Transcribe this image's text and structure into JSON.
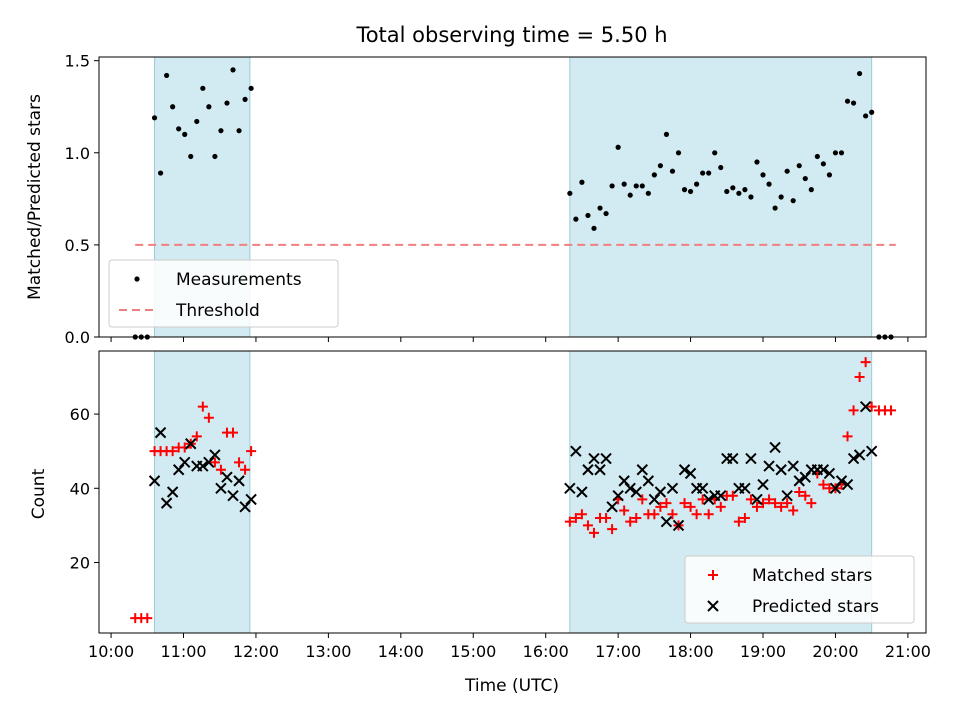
{
  "chart_data": [
    {
      "type": "scatter",
      "title": "Total observing time = 5.50 h",
      "xlabel": "",
      "ylabel": "Matched/Predicted stars",
      "ylim": [
        0,
        1.52
      ],
      "yticks": [
        "0.0",
        "0.5",
        "1.0",
        "1.5"
      ],
      "yticks_values": [
        0,
        0.5,
        1.0,
        1.5
      ],
      "shaded_intervals": [
        [
          "10:36",
          "11:55"
        ],
        [
          "16:20",
          "20:30"
        ]
      ],
      "shade_color": "#add8e6",
      "legend_position": "lower-left",
      "series": [
        {
          "name": "Measurements",
          "marker": "dot",
          "color": "#000000",
          "points": [
            [
              "10:20",
              0.0
            ],
            [
              "10:25",
              0.0
            ],
            [
              "10:30",
              0.0
            ],
            [
              "10:36",
              1.19
            ],
            [
              "10:41",
              0.89
            ],
            [
              "10:46",
              1.42
            ],
            [
              "10:51",
              1.25
            ],
            [
              "10:56",
              1.13
            ],
            [
              "11:01",
              1.1
            ],
            [
              "11:06",
              0.98
            ],
            [
              "11:11",
              1.17
            ],
            [
              "11:16",
              1.35
            ],
            [
              "11:21",
              1.25
            ],
            [
              "11:26",
              0.98
            ],
            [
              "11:31",
              1.12
            ],
            [
              "11:36",
              1.27
            ],
            [
              "11:41",
              1.45
            ],
            [
              "11:46",
              1.12
            ],
            [
              "11:51",
              1.29
            ],
            [
              "11:56",
              1.35
            ],
            [
              "16:20",
              0.78
            ],
            [
              "16:25",
              0.64
            ],
            [
              "16:30",
              0.84
            ],
            [
              "16:35",
              0.66
            ],
            [
              "16:40",
              0.59
            ],
            [
              "16:45",
              0.7
            ],
            [
              "16:50",
              0.67
            ],
            [
              "16:55",
              0.82
            ],
            [
              "17:00",
              1.03
            ],
            [
              "17:05",
              0.83
            ],
            [
              "17:10",
              0.77
            ],
            [
              "17:15",
              0.82
            ],
            [
              "17:20",
              0.82
            ],
            [
              "17:25",
              0.78
            ],
            [
              "17:30",
              0.88
            ],
            [
              "17:35",
              0.93
            ],
            [
              "17:40",
              1.1
            ],
            [
              "17:45",
              0.9
            ],
            [
              "17:50",
              1.0
            ],
            [
              "17:55",
              0.8
            ],
            [
              "18:00",
              0.79
            ],
            [
              "18:05",
              0.83
            ],
            [
              "18:10",
              0.89
            ],
            [
              "18:15",
              0.89
            ],
            [
              "18:20",
              1.0
            ],
            [
              "18:25",
              0.92
            ],
            [
              "18:30",
              0.79
            ],
            [
              "18:35",
              0.81
            ],
            [
              "18:40",
              0.78
            ],
            [
              "18:45",
              0.8
            ],
            [
              "18:50",
              0.76
            ],
            [
              "18:55",
              0.95
            ],
            [
              "19:00",
              0.88
            ],
            [
              "19:05",
              0.83
            ],
            [
              "19:10",
              0.7
            ],
            [
              "19:15",
              0.76
            ],
            [
              "19:20",
              0.9
            ],
            [
              "19:25",
              0.74
            ],
            [
              "19:30",
              0.93
            ],
            [
              "19:35",
              0.86
            ],
            [
              "19:40",
              0.8
            ],
            [
              "19:45",
              0.98
            ],
            [
              "19:50",
              0.94
            ],
            [
              "19:55",
              0.88
            ],
            [
              "20:00",
              1.0
            ],
            [
              "20:05",
              1.0
            ],
            [
              "20:10",
              1.28
            ],
            [
              "20:15",
              1.27
            ],
            [
              "20:20",
              1.43
            ],
            [
              "20:25",
              1.2
            ],
            [
              "20:30",
              1.22
            ],
            [
              "20:36",
              0.0
            ],
            [
              "20:41",
              0.0
            ],
            [
              "20:46",
              0.0
            ]
          ]
        },
        {
          "name": "Threshold",
          "marker": "dashed-line",
          "color": "#f08080",
          "points": [
            [
              "10:20",
              0.5
            ],
            [
              "20:50",
              0.5
            ]
          ]
        }
      ]
    },
    {
      "type": "scatter",
      "title": "",
      "xlabel": "Time (UTC)",
      "ylabel": "Count",
      "ylim": [
        1,
        77
      ],
      "yticks": [
        "20",
        "40",
        "60"
      ],
      "yticks_values": [
        20,
        40,
        60
      ],
      "xlim": [
        "09:50",
        "21:15"
      ],
      "xticks": [
        "10:00",
        "11:00",
        "12:00",
        "13:00",
        "14:00",
        "15:00",
        "16:00",
        "17:00",
        "18:00",
        "19:00",
        "20:00",
        "21:00"
      ],
      "shaded_intervals": [
        [
          "10:36",
          "11:55"
        ],
        [
          "16:20",
          "20:30"
        ]
      ],
      "shade_color": "#add8e6",
      "legend_position": "lower-right",
      "series": [
        {
          "name": "Matched stars",
          "marker": "plus",
          "color": "#ff0000",
          "points": [
            [
              "10:20",
              5
            ],
            [
              "10:25",
              5
            ],
            [
              "10:30",
              5
            ],
            [
              "10:36",
              50
            ],
            [
              "10:41",
              50
            ],
            [
              "10:46",
              50
            ],
            [
              "10:51",
              50
            ],
            [
              "10:56",
              51
            ],
            [
              "11:01",
              51
            ],
            [
              "11:06",
              52
            ],
            [
              "11:11",
              54
            ],
            [
              "11:16",
              62
            ],
            [
              "11:21",
              59
            ],
            [
              "11:26",
              47
            ],
            [
              "11:31",
              45
            ],
            [
              "11:36",
              55
            ],
            [
              "11:41",
              55
            ],
            [
              "11:46",
              47
            ],
            [
              "11:51",
              45
            ],
            [
              "11:56",
              50
            ],
            [
              "16:20",
              31
            ],
            [
              "16:25",
              32
            ],
            [
              "16:30",
              33
            ],
            [
              "16:35",
              30
            ],
            [
              "16:40",
              28
            ],
            [
              "16:45",
              32
            ],
            [
              "16:50",
              32
            ],
            [
              "16:55",
              29
            ],
            [
              "17:00",
              37
            ],
            [
              "17:05",
              34
            ],
            [
              "17:10",
              31
            ],
            [
              "17:15",
              32
            ],
            [
              "17:20",
              37
            ],
            [
              "17:25",
              33
            ],
            [
              "17:30",
              33
            ],
            [
              "17:35",
              35
            ],
            [
              "17:40",
              36
            ],
            [
              "17:45",
              33
            ],
            [
              "17:50",
              30
            ],
            [
              "17:55",
              36
            ],
            [
              "18:00",
              35
            ],
            [
              "18:05",
              33
            ],
            [
              "18:10",
              37
            ],
            [
              "18:15",
              33
            ],
            [
              "18:20",
              37
            ],
            [
              "18:25",
              35
            ],
            [
              "18:30",
              38
            ],
            [
              "18:35",
              38
            ],
            [
              "18:40",
              31
            ],
            [
              "18:45",
              32
            ],
            [
              "18:50",
              37
            ],
            [
              "18:55",
              35
            ],
            [
              "19:00",
              36
            ],
            [
              "19:05",
              37
            ],
            [
              "19:10",
              36
            ],
            [
              "19:15",
              35
            ],
            [
              "19:20",
              36
            ],
            [
              "19:25",
              34
            ],
            [
              "19:30",
              39
            ],
            [
              "19:35",
              38
            ],
            [
              "19:40",
              36
            ],
            [
              "19:45",
              44
            ],
            [
              "19:50",
              41
            ],
            [
              "19:55",
              40
            ],
            [
              "20:00",
              40
            ],
            [
              "20:05",
              41
            ],
            [
              "20:10",
              54
            ],
            [
              "20:15",
              61
            ],
            [
              "20:20",
              70
            ],
            [
              "20:25",
              74
            ],
            [
              "20:30",
              62
            ],
            [
              "20:36",
              61
            ],
            [
              "20:41",
              61
            ],
            [
              "20:46",
              61
            ]
          ]
        },
        {
          "name": "Predicted stars",
          "marker": "x",
          "color": "#000000",
          "points": [
            [
              "10:36",
              42
            ],
            [
              "10:41",
              55
            ],
            [
              "10:46",
              36
            ],
            [
              "10:51",
              39
            ],
            [
              "10:56",
              45
            ],
            [
              "11:01",
              47
            ],
            [
              "11:06",
              52
            ],
            [
              "11:11",
              46
            ],
            [
              "11:16",
              46
            ],
            [
              "11:21",
              47
            ],
            [
              "11:26",
              49
            ],
            [
              "11:31",
              40
            ],
            [
              "11:36",
              43
            ],
            [
              "11:41",
              38
            ],
            [
              "11:46",
              42
            ],
            [
              "11:51",
              35
            ],
            [
              "11:56",
              37
            ],
            [
              "16:20",
              40
            ],
            [
              "16:25",
              50
            ],
            [
              "16:30",
              39
            ],
            [
              "16:35",
              45
            ],
            [
              "16:40",
              48
            ],
            [
              "16:45",
              45
            ],
            [
              "16:50",
              48
            ],
            [
              "16:55",
              35
            ],
            [
              "17:00",
              38
            ],
            [
              "17:05",
              42
            ],
            [
              "17:10",
              40
            ],
            [
              "17:15",
              39
            ],
            [
              "17:20",
              45
            ],
            [
              "17:25",
              42
            ],
            [
              "17:30",
              37
            ],
            [
              "17:35",
              39
            ],
            [
              "17:40",
              31
            ],
            [
              "17:45",
              40
            ],
            [
              "17:50",
              30
            ],
            [
              "17:55",
              45
            ],
            [
              "18:00",
              44
            ],
            [
              "18:05",
              40
            ],
            [
              "18:10",
              40
            ],
            [
              "18:15",
              37
            ],
            [
              "18:20",
              38
            ],
            [
              "18:25",
              38
            ],
            [
              "18:30",
              48
            ],
            [
              "18:35",
              48
            ],
            [
              "18:40",
              40
            ],
            [
              "18:45",
              40
            ],
            [
              "18:50",
              48
            ],
            [
              "18:55",
              37
            ],
            [
              "19:00",
              41
            ],
            [
              "19:05",
              46
            ],
            [
              "19:10",
              51
            ],
            [
              "19:15",
              45
            ],
            [
              "19:20",
              38
            ],
            [
              "19:25",
              46
            ],
            [
              "19:30",
              42
            ],
            [
              "19:35",
              43
            ],
            [
              "19:40",
              45
            ],
            [
              "19:45",
              45
            ],
            [
              "19:50",
              45
            ],
            [
              "19:55",
              44
            ],
            [
              "20:00",
              40
            ],
            [
              "20:05",
              42
            ],
            [
              "20:10",
              41
            ],
            [
              "20:15",
              48
            ],
            [
              "20:20",
              49
            ],
            [
              "20:25",
              62
            ],
            [
              "20:30",
              50
            ]
          ]
        }
      ]
    }
  ]
}
